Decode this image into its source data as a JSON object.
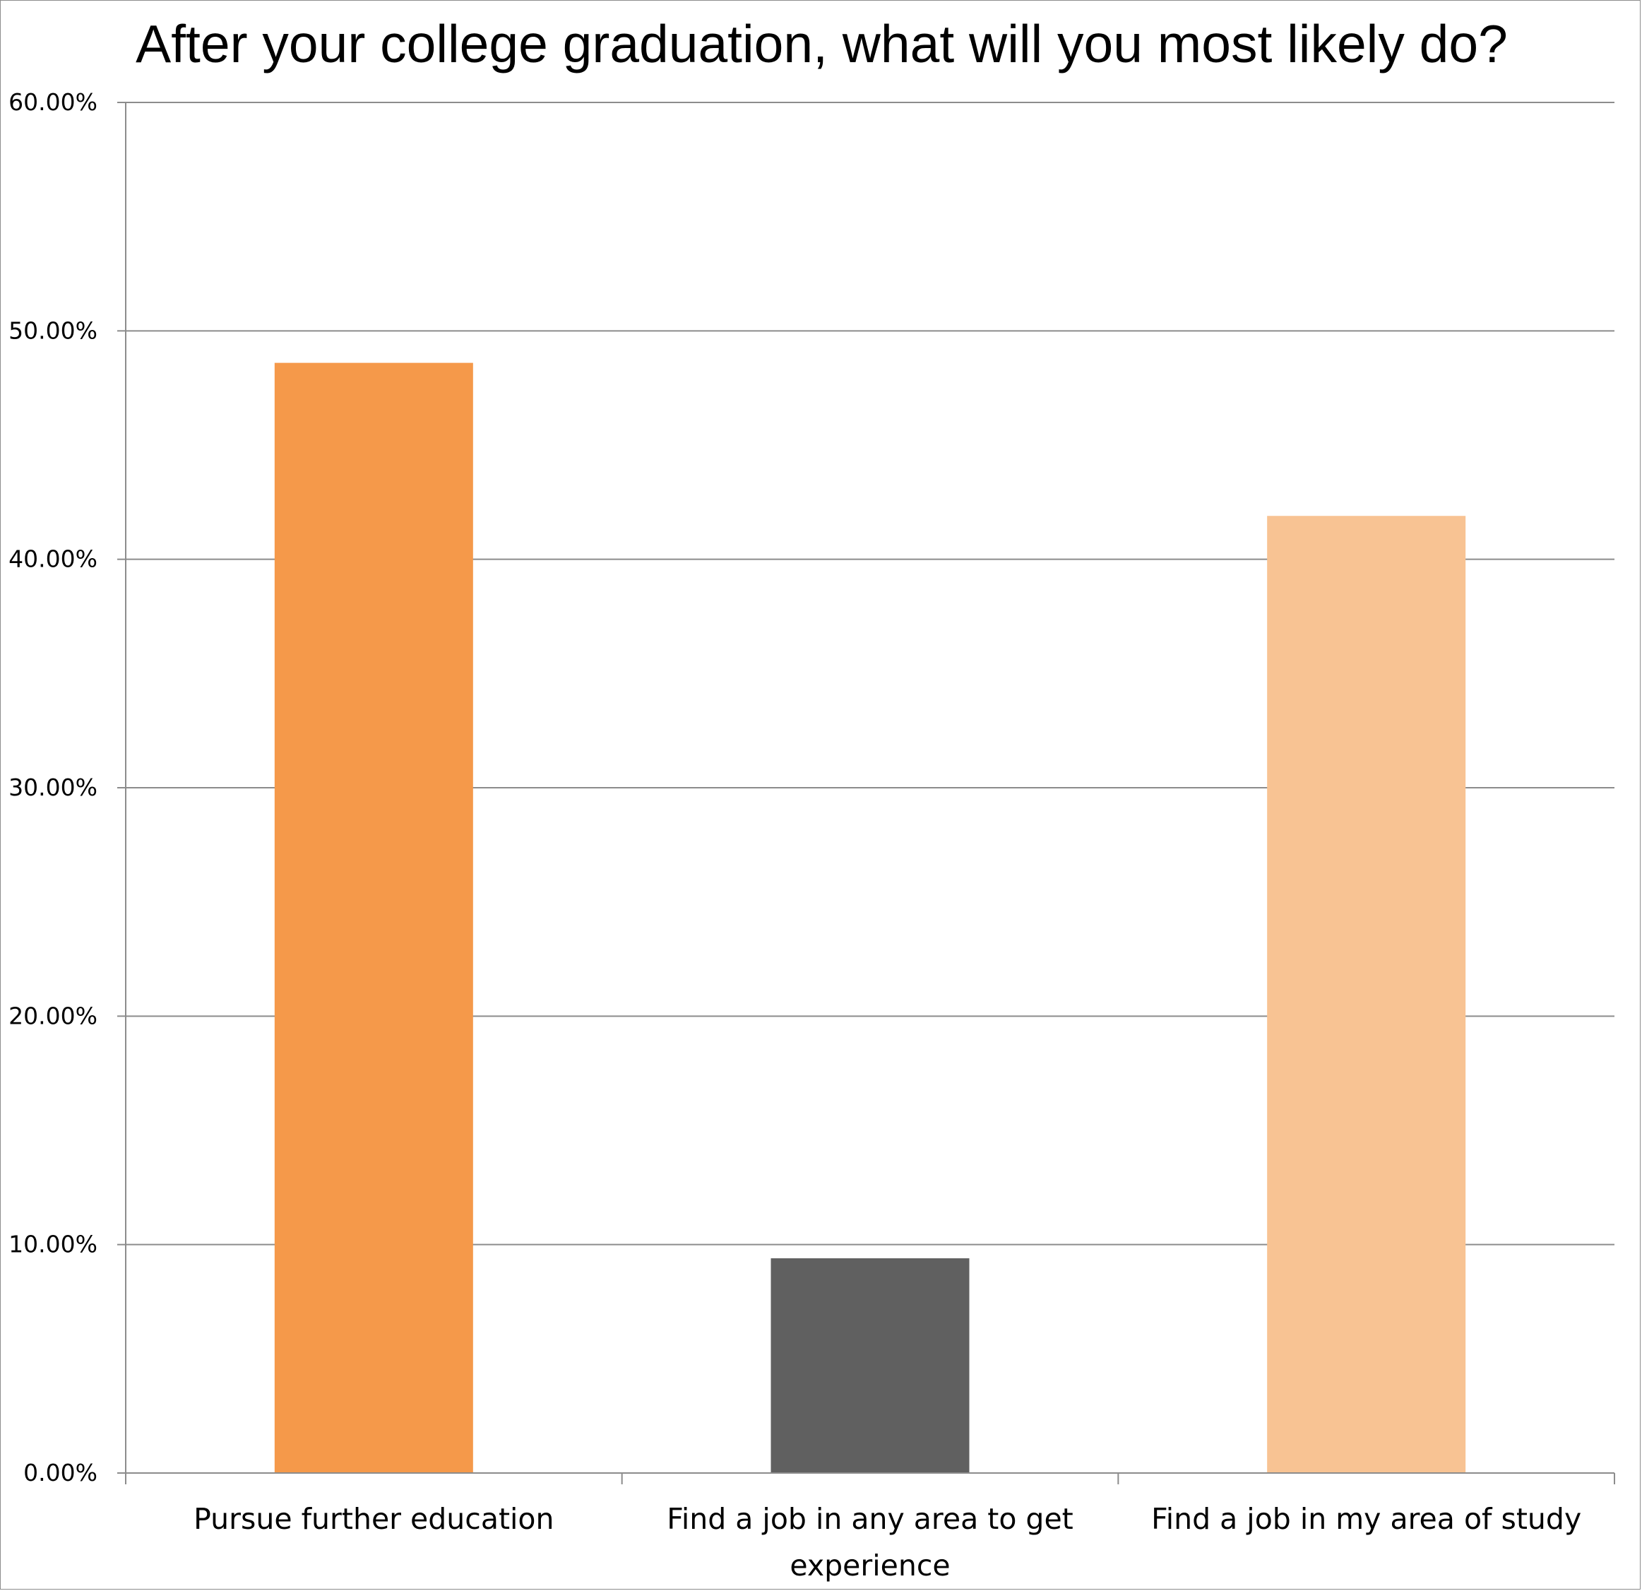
{
  "chart_data": {
    "type": "bar",
    "title": "After your college graduation, what will you most likely do?",
    "categories": [
      [
        "Pursue further education"
      ],
      [
        "Find a job in any area to get",
        "experience"
      ],
      [
        "Find a job in my area of study"
      ]
    ],
    "values": [
      48.6,
      9.4,
      41.9
    ],
    "colors": [
      "#F5994A",
      "#606060",
      "#F8C393"
    ],
    "ylim": [
      0,
      60
    ],
    "yticks": [
      0,
      10,
      20,
      30,
      40,
      50,
      60
    ],
    "ytick_labels": [
      "0.00%",
      "10.00%",
      "20.00%",
      "30.00%",
      "40.00%",
      "50.00%",
      "60.00%"
    ],
    "xlabel": "",
    "ylabel": "",
    "grid": true,
    "legend": false
  }
}
